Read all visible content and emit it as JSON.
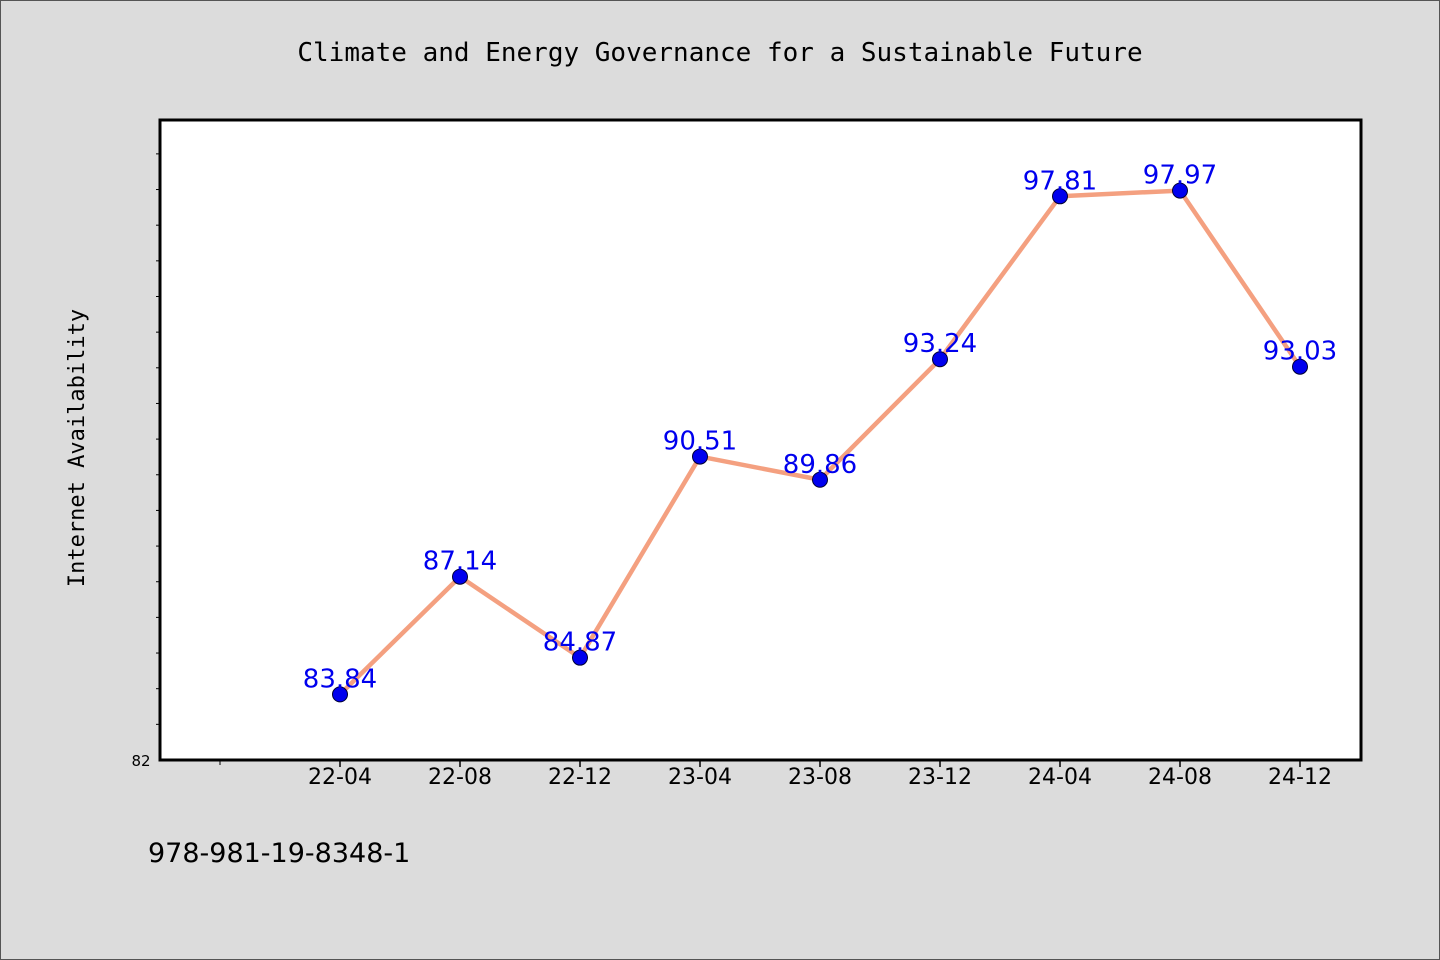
{
  "chart_data": {
    "type": "line",
    "title": "Climate and Energy Governance for a Sustainable Future",
    "xlabel": "",
    "ylabel": "Internet Availability",
    "categories": [
      "22-04",
      "22-08",
      "22-12",
      "23-04",
      "23-08",
      "23-12",
      "24-04",
      "24-08",
      "24-12"
    ],
    "series": [
      {
        "values": [
          83.84,
          87.14,
          84.87,
          90.51,
          89.86,
          93.24,
          97.81,
          97.97,
          93.03
        ],
        "labels": [
          "83.84",
          "87.14",
          "84.87",
          "90.51",
          "89.86",
          "93.24",
          "97.81",
          "97.97",
          "93.03"
        ]
      }
    ],
    "ylim": [
      82,
      99.95
    ],
    "ytick_label": "82",
    "grid": false,
    "legend": "none",
    "colors": {
      "line": "#f4a080",
      "marker": "#0000ee",
      "data_label": "#0000ee",
      "plot_bg": "#ffffff",
      "figure_bg": "#dcdcdc"
    }
  },
  "footer": {
    "text": "978-981-19-8348-1"
  }
}
